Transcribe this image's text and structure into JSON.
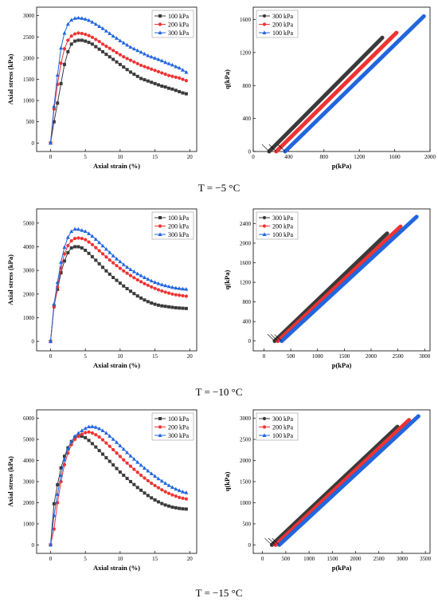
{
  "colors": {
    "c100": "#3a3a3a",
    "c200": "#ee3333",
    "c300": "#2266dd",
    "frame": "#000000"
  },
  "rows": [
    {
      "label": "T = −5 °C"
    },
    {
      "label": "T = −10 °C"
    },
    {
      "label": "T = −15 °C"
    }
  ],
  "chart_data": [
    {
      "type": "line",
      "xlabel": "Axial strain (%)",
      "ylabel": "Axial stress (kPa)",
      "xlim": [
        -2,
        21
      ],
      "ylim": [
        -200,
        3200
      ],
      "xticks": [
        0,
        5,
        10,
        15,
        20
      ],
      "yticks": [
        0,
        500,
        1000,
        1500,
        2000,
        2500,
        3000
      ],
      "legend_position": "top-right",
      "x": [
        0,
        0.5,
        1.0,
        1.5,
        2.0,
        2.5,
        3.0,
        3.5,
        4.0,
        4.5,
        5.0,
        5.5,
        6.0,
        6.5,
        7.0,
        7.5,
        8.0,
        8.5,
        9.0,
        9.5,
        10.0,
        10.5,
        11.0,
        11.5,
        12.0,
        12.5,
        13.0,
        13.5,
        14.0,
        14.5,
        15.0,
        15.5,
        16.0,
        16.5,
        17.0,
        17.5,
        18.0,
        18.5,
        19.0,
        19.5
      ],
      "series": [
        {
          "name": "100 kPa",
          "color": "#3a3a3a",
          "marker": "square",
          "values": [
            0,
            500,
            940,
            1400,
            1850,
            2150,
            2330,
            2400,
            2420,
            2420,
            2400,
            2370,
            2330,
            2270,
            2210,
            2150,
            2090,
            2030,
            1970,
            1910,
            1850,
            1790,
            1730,
            1670,
            1620,
            1570,
            1520,
            1490,
            1460,
            1430,
            1400,
            1370,
            1340,
            1320,
            1290,
            1270,
            1240,
            1210,
            1180,
            1160
          ]
        },
        {
          "name": "200 kPa",
          "color": "#ee3333",
          "marker": "circle",
          "values": [
            0,
            800,
            1380,
            1880,
            2220,
            2420,
            2520,
            2570,
            2590,
            2580,
            2560,
            2530,
            2490,
            2440,
            2390,
            2330,
            2280,
            2230,
            2180,
            2130,
            2080,
            2030,
            1990,
            1950,
            1910,
            1870,
            1830,
            1800,
            1770,
            1740,
            1710,
            1680,
            1650,
            1620,
            1590,
            1570,
            1550,
            1530,
            1500,
            1470
          ]
        },
        {
          "name": "300 kPa",
          "color": "#2266dd",
          "marker": "triangle",
          "values": [
            0,
            870,
            1600,
            2240,
            2590,
            2800,
            2900,
            2940,
            2950,
            2940,
            2920,
            2890,
            2850,
            2800,
            2750,
            2700,
            2640,
            2580,
            2520,
            2470,
            2410,
            2360,
            2310,
            2260,
            2220,
            2180,
            2140,
            2100,
            2060,
            2030,
            2000,
            1970,
            1940,
            1900,
            1870,
            1840,
            1800,
            1770,
            1720,
            1670
          ]
        }
      ]
    },
    {
      "type": "line",
      "xlabel": "p(kPa)",
      "ylabel": "q(kPa)",
      "xlim": [
        0,
        2000
      ],
      "ylim": [
        0,
        1750
      ],
      "xticks": [
        0,
        400,
        800,
        1200,
        1600,
        2000
      ],
      "yticks": [
        0,
        400,
        800,
        1200,
        1600
      ],
      "legend_position": "top-left",
      "series": [
        {
          "name": "300 kPa",
          "color": "#3a3a3a",
          "marker": "circle",
          "x": [
            180,
            1460
          ],
          "y": [
            0,
            1380
          ]
        },
        {
          "name": "200 kPa",
          "color": "#ee3333",
          "marker": "circle",
          "x": [
            260,
            1620
          ],
          "y": [
            0,
            1440
          ]
        },
        {
          "name": "100 kPa",
          "color": "#2266dd",
          "marker": "triangle",
          "x": [
            360,
            1930
          ],
          "y": [
            0,
            1640
          ]
        }
      ]
    },
    {
      "type": "line",
      "xlabel": "Axial strain (%)",
      "ylabel": "Axial stress (kPa)",
      "xlim": [
        -2,
        21
      ],
      "ylim": [
        -400,
        5600
      ],
      "xticks": [
        0,
        5,
        10,
        15,
        20
      ],
      "yticks": [
        0,
        1000,
        2000,
        3000,
        4000,
        5000
      ],
      "legend_position": "top-right",
      "x": [
        0,
        0.5,
        1.0,
        1.5,
        2.0,
        2.5,
        3.0,
        3.5,
        4.0,
        4.5,
        5.0,
        5.5,
        6.0,
        6.5,
        7.0,
        7.5,
        8.0,
        8.5,
        9.0,
        9.5,
        10.0,
        10.5,
        11.0,
        11.5,
        12.0,
        12.5,
        13.0,
        13.5,
        14.0,
        14.5,
        15.0,
        15.5,
        16.0,
        16.5,
        17.0,
        17.5,
        18.0,
        18.5,
        19.0,
        19.5
      ],
      "series": [
        {
          "name": "100 kPa",
          "color": "#3a3a3a",
          "marker": "square",
          "values": [
            0,
            1500,
            2200,
            2900,
            3400,
            3750,
            3950,
            4000,
            4000,
            3950,
            3850,
            3720,
            3580,
            3430,
            3280,
            3130,
            2980,
            2840,
            2700,
            2580,
            2460,
            2340,
            2230,
            2120,
            2020,
            1920,
            1830,
            1750,
            1680,
            1620,
            1570,
            1530,
            1500,
            1480,
            1460,
            1440,
            1420,
            1410,
            1400,
            1390
          ]
        },
        {
          "name": "200 kPa",
          "color": "#ee3333",
          "marker": "circle",
          "values": [
            0,
            1450,
            2300,
            3100,
            3700,
            4050,
            4250,
            4350,
            4370,
            4350,
            4300,
            4200,
            4090,
            3960,
            3830,
            3700,
            3570,
            3440,
            3320,
            3200,
            3090,
            2980,
            2880,
            2780,
            2690,
            2600,
            2520,
            2440,
            2370,
            2300,
            2240,
            2180,
            2130,
            2080,
            2040,
            2000,
            1970,
            1950,
            1930,
            1910
          ]
        },
        {
          "name": "300 kPa",
          "color": "#2266dd",
          "marker": "triangle",
          "values": [
            0,
            1580,
            2500,
            3350,
            3980,
            4400,
            4650,
            4750,
            4740,
            4700,
            4650,
            4560,
            4450,
            4320,
            4180,
            4040,
            3900,
            3760,
            3620,
            3490,
            3370,
            3250,
            3140,
            3040,
            2950,
            2860,
            2780,
            2700,
            2630,
            2560,
            2500,
            2450,
            2400,
            2360,
            2320,
            2290,
            2260,
            2240,
            2220,
            2210
          ]
        }
      ]
    },
    {
      "type": "line",
      "xlabel": "p(kPa)",
      "ylabel": "q(kPa)",
      "xlim": [
        -200,
        3100
      ],
      "ylim": [
        -200,
        2700
      ],
      "xticks": [
        0,
        500,
        1000,
        1500,
        2000,
        2500,
        3000
      ],
      "yticks": [
        0,
        400,
        800,
        1200,
        1600,
        2000,
        2400
      ],
      "legend_position": "top-left",
      "series": [
        {
          "name": "300 kPa",
          "color": "#3a3a3a",
          "marker": "circle",
          "x": [
            200,
            2300
          ],
          "y": [
            0,
            2200
          ]
        },
        {
          "name": "200 kPa",
          "color": "#ee3333",
          "marker": "circle",
          "x": [
            260,
            2550
          ],
          "y": [
            0,
            2340
          ]
        },
        {
          "name": "100 kPa",
          "color": "#2266dd",
          "marker": "triangle",
          "x": [
            330,
            2850
          ],
          "y": [
            0,
            2540
          ]
        }
      ]
    },
    {
      "type": "line",
      "xlabel": "Axial strain (%)",
      "ylabel": "Axial stress (kPa)",
      "xlim": [
        -2,
        21
      ],
      "ylim": [
        -400,
        6400
      ],
      "xticks": [
        0,
        5,
        10,
        15,
        20
      ],
      "yticks": [
        0,
        1000,
        2000,
        3000,
        4000,
        5000,
        6000
      ],
      "legend_position": "top-right",
      "x": [
        0,
        0.5,
        1.0,
        1.5,
        2.0,
        2.5,
        3.0,
        3.5,
        4.0,
        4.5,
        5.0,
        5.5,
        6.0,
        6.5,
        7.0,
        7.5,
        8.0,
        8.5,
        9.0,
        9.5,
        10.0,
        10.5,
        11.0,
        11.5,
        12.0,
        12.5,
        13.0,
        13.5,
        14.0,
        14.5,
        15.0,
        15.5,
        16.0,
        16.5,
        17.0,
        17.5,
        18.0,
        18.5,
        19.0,
        19.5
      ],
      "series": [
        {
          "name": "100 kPa",
          "color": "#3a3a3a",
          "marker": "square",
          "values": [
            0,
            1950,
            2850,
            3650,
            4200,
            4600,
            4900,
            5100,
            5150,
            5150,
            5080,
            4950,
            4800,
            4640,
            4470,
            4300,
            4130,
            3960,
            3790,
            3620,
            3450,
            3300,
            3150,
            3000,
            2860,
            2720,
            2590,
            2460,
            2340,
            2230,
            2130,
            2040,
            1960,
            1890,
            1840,
            1790,
            1760,
            1730,
            1710,
            1700
          ]
        },
        {
          "name": "200 kPa",
          "color": "#ee3333",
          "marker": "circle",
          "values": [
            0,
            750,
            2000,
            3000,
            3800,
            4350,
            4750,
            5000,
            5150,
            5250,
            5320,
            5350,
            5300,
            5220,
            5110,
            4980,
            4830,
            4670,
            4510,
            4350,
            4190,
            4030,
            3880,
            3730,
            3580,
            3440,
            3300,
            3170,
            3040,
            2920,
            2810,
            2710,
            2610,
            2520,
            2440,
            2370,
            2310,
            2250,
            2210,
            2180
          ]
        },
        {
          "name": "300 kPa",
          "color": "#2266dd",
          "marker": "triangle",
          "values": [
            0,
            1400,
            2400,
            3300,
            4050,
            4550,
            4900,
            5150,
            5300,
            5420,
            5520,
            5600,
            5610,
            5580,
            5510,
            5420,
            5300,
            5160,
            5010,
            4860,
            4700,
            4540,
            4380,
            4220,
            4070,
            3920,
            3780,
            3640,
            3510,
            3380,
            3260,
            3140,
            3030,
            2920,
            2820,
            2730,
            2650,
            2580,
            2520,
            2480
          ]
        }
      ]
    },
    {
      "type": "line",
      "xlabel": "p(kPa)",
      "ylabel": "q(kPa)",
      "xlim": [
        -200,
        3600
      ],
      "ylim": [
        -200,
        3200
      ],
      "xticks": [
        0,
        500,
        1000,
        1500,
        2000,
        2500,
        3000,
        3500
      ],
      "yticks": [
        0,
        500,
        1000,
        1500,
        2000,
        2500,
        3000
      ],
      "legend_position": "top-left",
      "series": [
        {
          "name": "300 kPa",
          "color": "#3a3a3a",
          "marker": "circle",
          "x": [
            200,
            2900
          ],
          "y": [
            0,
            2800
          ]
        },
        {
          "name": "200 kPa",
          "color": "#ee3333",
          "marker": "circle",
          "x": [
            280,
            3150
          ],
          "y": [
            0,
            2960
          ]
        },
        {
          "name": "100 kPa",
          "color": "#2266dd",
          "marker": "triangle",
          "x": [
            360,
            3350
          ],
          "y": [
            0,
            3050
          ]
        }
      ]
    }
  ]
}
